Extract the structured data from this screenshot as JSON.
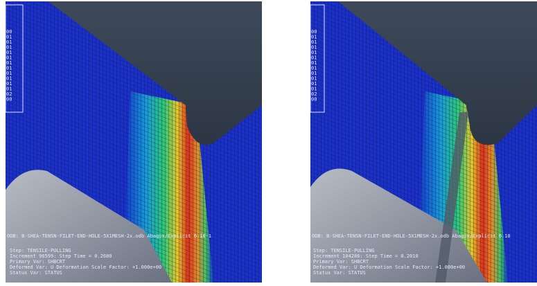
{
  "panels": [
    {
      "legend_labels": [
        "00",
        "01",
        "01",
        "01",
        "01",
        "01",
        "01",
        "01",
        "01",
        "01",
        "01",
        "01",
        "02",
        "00"
      ],
      "odb": "ODB: B-SHEA-TENSN-FILET-END-HOLE-5X1MESH-2x.odb    Abaqus/Explicit 6.10-1",
      "step": "Step: TENSILE-PULLING",
      "increment": "Increment    96599: Step Time =    0.2680",
      "primary_var": "Primary Var: SHBCRT",
      "deformed_var": "Deformed Var: U   Deformation Scale Factor: +1.000e+00",
      "status_var": "Status Var: STATUS"
    },
    {
      "legend_labels": [
        "00",
        "01",
        "01",
        "01",
        "01",
        "01",
        "01",
        "01",
        "01",
        "01",
        "01",
        "01",
        "02",
        "00"
      ],
      "odb": "ODB: B-SHEA-TENSN-FILET-END-HOLE-5X1MESH-2x.odb    Abaqus/Explicit 6.10",
      "step": "Step: TENSILE-PULLING",
      "increment": "Increment   104286: Step Time =    0.2010",
      "primary_var": "Primary Var: SHBCRT",
      "deformed_var": "Deformed Var: U   Deformation Scale Factor: +1.000e+00",
      "status_var": "Status Var: STATUS"
    }
  ]
}
